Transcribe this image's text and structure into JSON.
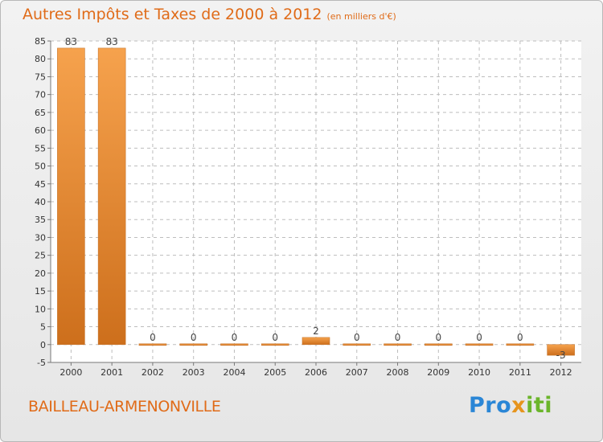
{
  "header": {
    "title": "Autres Impôts et Taxes de 2000 à 2012",
    "unit": "(en milliers d'€)"
  },
  "footer": {
    "commune": "BAILLEAU-ARMENONVILLE",
    "brand_parts": [
      "Pro",
      "x",
      "iti"
    ]
  },
  "colors": {
    "bar_top": "#f6a24d",
    "bar_bottom": "#cd6f1c",
    "accent": "#e06b18"
  },
  "chart_data": {
    "type": "bar",
    "categories": [
      "2000",
      "2001",
      "2002",
      "2003",
      "2004",
      "2005",
      "2006",
      "2007",
      "2008",
      "2009",
      "2010",
      "2011",
      "2012"
    ],
    "values": [
      83,
      83,
      0,
      0,
      0,
      0,
      2,
      0,
      0,
      0,
      0,
      0,
      -3
    ],
    "value_labels": [
      "83",
      "83",
      "0",
      "0",
      "0",
      "0",
      "2",
      "0",
      "0",
      "0",
      "0",
      "0",
      "-3"
    ],
    "ylim": [
      -5,
      85
    ],
    "yticks": [
      -5,
      0,
      5,
      10,
      15,
      20,
      25,
      30,
      35,
      40,
      45,
      50,
      55,
      60,
      65,
      70,
      75,
      80,
      85
    ],
    "grid": true
  }
}
